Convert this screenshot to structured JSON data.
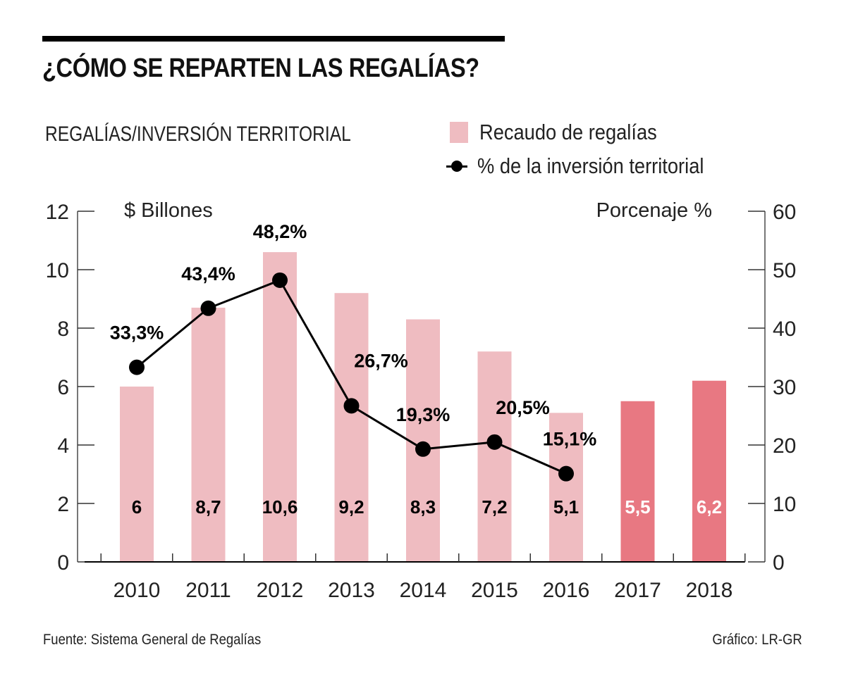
{
  "header": {
    "title": "¿CÓMO SE REPARTEN LAS REGALÍAS?",
    "subtitle": "REGALÍAS/INVERSIÓN TERRITORIAL"
  },
  "legend": {
    "bar_label": "Recaudo de regalías",
    "line_label": "% de la inversión territorial"
  },
  "footer": {
    "source": "Fuente: Sistema General de Regalías",
    "credit": "Gráfico: LR-GR"
  },
  "colors": {
    "bar_historic": "#efbcc1",
    "bar_projected": "#e87882",
    "line": "#000000",
    "axis": "#777777"
  },
  "chart_data": {
    "type": "bar",
    "title": "¿CÓMO SE REPARTEN LAS REGALÍAS?",
    "subtitle": "REGALÍAS/INVERSIÓN TERRITORIAL",
    "xlabel": "",
    "ylabel": "$ Billones",
    "y2label": "Porcenaje %",
    "categories": [
      "2010",
      "2011",
      "2012",
      "2013",
      "2014",
      "2015",
      "2016",
      "2017",
      "2018"
    ],
    "ylim": [
      0,
      12
    ],
    "yticks": [
      0,
      2,
      4,
      6,
      8,
      10,
      12
    ],
    "y2lim": [
      0,
      60
    ],
    "y2ticks": [
      0,
      10,
      20,
      30,
      40,
      50,
      60
    ],
    "grid": false,
    "legend_position": "top-right",
    "series": [
      {
        "name": "Recaudo de regalías",
        "type": "bar",
        "axis": "left",
        "values": [
          6,
          8.7,
          10.6,
          9.2,
          8.3,
          7.2,
          5.1,
          5.5,
          6.2
        ],
        "labels": [
          "6",
          "8,7",
          "10,6",
          "9,2",
          "8,3",
          "7,2",
          "5,1",
          "5,5",
          "6,2"
        ],
        "projected": [
          false,
          false,
          false,
          false,
          false,
          false,
          false,
          true,
          true
        ]
      },
      {
        "name": "% de la inversión territorial",
        "type": "line",
        "axis": "right",
        "values": [
          33.3,
          43.4,
          48.2,
          26.7,
          19.3,
          20.5,
          15.1,
          null,
          null
        ],
        "labels": [
          "33,3%",
          "43,4%",
          "48,2%",
          "26,7%",
          "19,3%",
          "20,5%",
          "15,1%",
          null,
          null
        ]
      }
    ]
  }
}
